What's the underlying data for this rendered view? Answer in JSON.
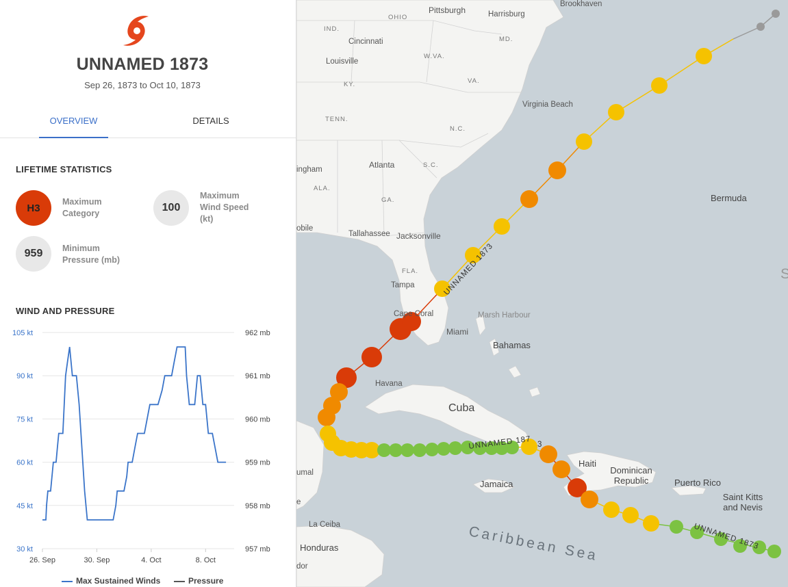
{
  "storm": {
    "name": "UNNAMED 1873",
    "dates": "Sep 26, 1873 to Oct 10, 1873",
    "icon": "hurricane-icon",
    "icon_color": "#e5461d"
  },
  "tabs": [
    {
      "label": "OVERVIEW",
      "active": true
    },
    {
      "label": "DETAILS",
      "active": false
    }
  ],
  "lifetime": {
    "heading": "LIFETIME STATISTICS",
    "max_category": {
      "value": "H3",
      "label": "Maximum Category",
      "color": "#d93b08"
    },
    "max_wind": {
      "value": "100",
      "label": "Maximum Wind Speed (kt)"
    },
    "min_pressure": {
      "value": "959",
      "label": "Minimum Pressure (mb)"
    }
  },
  "wind_pressure": {
    "heading": "WIND AND PRESSURE",
    "legend": {
      "wind": "Max Sustained Winds",
      "pressure": "Pressure"
    },
    "colors": {
      "wind": "#3a74c9",
      "pressure": "#555555"
    }
  },
  "chart_data": {
    "type": "line",
    "left_axis": {
      "ticks": [
        "105 kt",
        "90 kt",
        "75 kt",
        "60 kt",
        "45 kt",
        "30 kt"
      ],
      "values": [
        105,
        90,
        75,
        60,
        45,
        30
      ],
      "ylim": [
        30,
        105
      ]
    },
    "right_axis": {
      "ticks": [
        "962 mb",
        "961 mb",
        "960 mb",
        "959 mb",
        "958 mb",
        "957 mb"
      ],
      "values": [
        962,
        961,
        960,
        959,
        958,
        957
      ],
      "ylim": [
        957,
        962
      ]
    },
    "x_ticks": [
      {
        "label": "26. Sep",
        "day": 0
      },
      {
        "label": "30. Sep",
        "day": 4
      },
      {
        "label": "4. Oct",
        "day": 8
      },
      {
        "label": "8. Oct",
        "day": 12
      }
    ],
    "x_range_days": [
      0,
      14.1
    ],
    "series": [
      {
        "name": "Max Sustained Winds",
        "points": [
          [
            0.0,
            40
          ],
          [
            0.25,
            40
          ],
          [
            0.3,
            45
          ],
          [
            0.4,
            50
          ],
          [
            0.6,
            50
          ],
          [
            0.7,
            55
          ],
          [
            0.8,
            60
          ],
          [
            1.0,
            60
          ],
          [
            1.1,
            65
          ],
          [
            1.2,
            70
          ],
          [
            1.5,
            70
          ],
          [
            1.6,
            80
          ],
          [
            1.7,
            90
          ],
          [
            1.85,
            95
          ],
          [
            2.0,
            100
          ],
          [
            2.1,
            95
          ],
          [
            2.2,
            90
          ],
          [
            2.5,
            90
          ],
          [
            2.7,
            80
          ],
          [
            2.9,
            65
          ],
          [
            3.1,
            50
          ],
          [
            3.3,
            40
          ],
          [
            4.7,
            40
          ],
          [
            5.2,
            40
          ],
          [
            5.4,
            45
          ],
          [
            5.5,
            50
          ],
          [
            6.0,
            50
          ],
          [
            6.2,
            55
          ],
          [
            6.3,
            60
          ],
          [
            6.6,
            60
          ],
          [
            6.8,
            65
          ],
          [
            7.0,
            70
          ],
          [
            7.5,
            70
          ],
          [
            7.7,
            75
          ],
          [
            7.9,
            80
          ],
          [
            8.5,
            80
          ],
          [
            8.8,
            85
          ],
          [
            9.0,
            90
          ],
          [
            9.5,
            90
          ],
          [
            9.7,
            95
          ],
          [
            9.9,
            100
          ],
          [
            10.5,
            100
          ],
          [
            10.6,
            90
          ],
          [
            10.8,
            80
          ],
          [
            11.2,
            80
          ],
          [
            11.4,
            90
          ],
          [
            11.6,
            90
          ],
          [
            11.8,
            80
          ],
          [
            12.0,
            80
          ],
          [
            12.2,
            70
          ],
          [
            12.5,
            70
          ],
          [
            12.7,
            65
          ],
          [
            12.9,
            60
          ],
          [
            13.5,
            60
          ]
        ]
      }
    ],
    "grid": true,
    "legend_position": "bottom"
  },
  "map": {
    "water_color": "#c9d2d8",
    "land_color": "#f4f4f2",
    "labels": {
      "brookhaven": "Brookhaven",
      "pittsburgh": "Pittsburgh",
      "harrisburg": "Harrisburg",
      "cincinnati": "Cincinnati",
      "louisville": "Louisville",
      "virginia_beach": "Virginia Beach",
      "atlanta": "Atlanta",
      "tallahassee": "Tallahassee",
      "jacksonville": "Jacksonville",
      "tampa": "Tampa",
      "cape_coral": "Cape Coral",
      "miami": "Miami",
      "marsh_harbour": "Marsh Harbour",
      "havana": "Havana",
      "la_ceiba": "La Ceiba",
      "ingham": "ingham",
      "obile": "obile",
      "umal": "umal",
      "dor": "dor",
      "e_frag": "e"
    },
    "states": {
      "ohio": "OHIO",
      "ind": "IND.",
      "md": "MD.",
      "wva": "W.VA.",
      "ky": "KY.",
      "va": "VA.",
      "tenn": "TENN.",
      "nc": "N.C.",
      "sc": "S.C.",
      "ala": "ALA.",
      "ga": "GA.",
      "fla": "FLA."
    },
    "countries": {
      "bermuda": "Bermuda",
      "bahamas": "Bahamas",
      "cuba": "Cuba",
      "haiti": "Haiti",
      "dominican": "Dominican Republic",
      "puerto_rico": "Puerto Rico",
      "jamaica": "Jamaica",
      "saint_kitts": "Saint Kitts and Nevis",
      "honduras": "Honduras",
      "s_frag": "S"
    },
    "sea": "Caribbean Sea",
    "track_labels": [
      "UNNAMED 1873",
      "UNNAMED 187",
      "3",
      "UNNAMED 1873"
    ],
    "track_colors": {
      "ts": "#7cc242",
      "h1": "#f5c200",
      "h2": "#f08a00",
      "h3": "#d93b08",
      "ext": "#9a9a9a"
    }
  }
}
